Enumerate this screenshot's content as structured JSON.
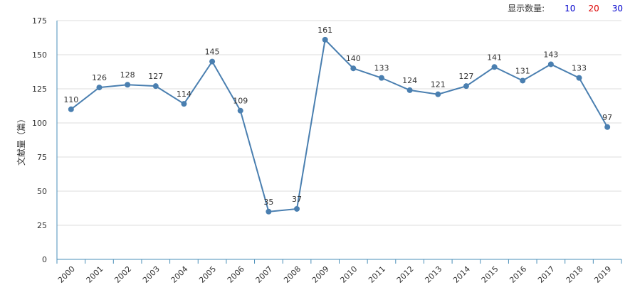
{
  "toolbar": {
    "label": "显示数量:",
    "options": [
      {
        "text": "10",
        "color": "#0000cc"
      },
      {
        "text": "20",
        "color": "#dd0000"
      },
      {
        "text": "30",
        "color": "#0000cc"
      }
    ]
  },
  "chart_data": {
    "type": "line",
    "ylabel": "文献量（篇）",
    "xlabel": "",
    "title": "",
    "categories": [
      "2000",
      "2001",
      "2002",
      "2003",
      "2004",
      "2005",
      "2006",
      "2007",
      "2008",
      "2009",
      "2010",
      "2011",
      "2012",
      "2013",
      "2014",
      "2015",
      "2016",
      "2017",
      "2018",
      "2019"
    ],
    "series": [
      {
        "values": [
          110,
          126,
          128,
          127,
          114,
          145,
          109,
          35,
          37,
          161,
          140,
          133,
          124,
          121,
          127,
          141,
          131,
          143,
          133,
          97
        ]
      }
    ],
    "ylim": [
      0,
      175
    ],
    "yticks": [
      0,
      25,
      50,
      75,
      100,
      125,
      150,
      175
    ],
    "grid": true,
    "colors": {
      "line": "#4a7fb0",
      "grid": "#dddddd",
      "axis": "#4a8fb8"
    }
  }
}
